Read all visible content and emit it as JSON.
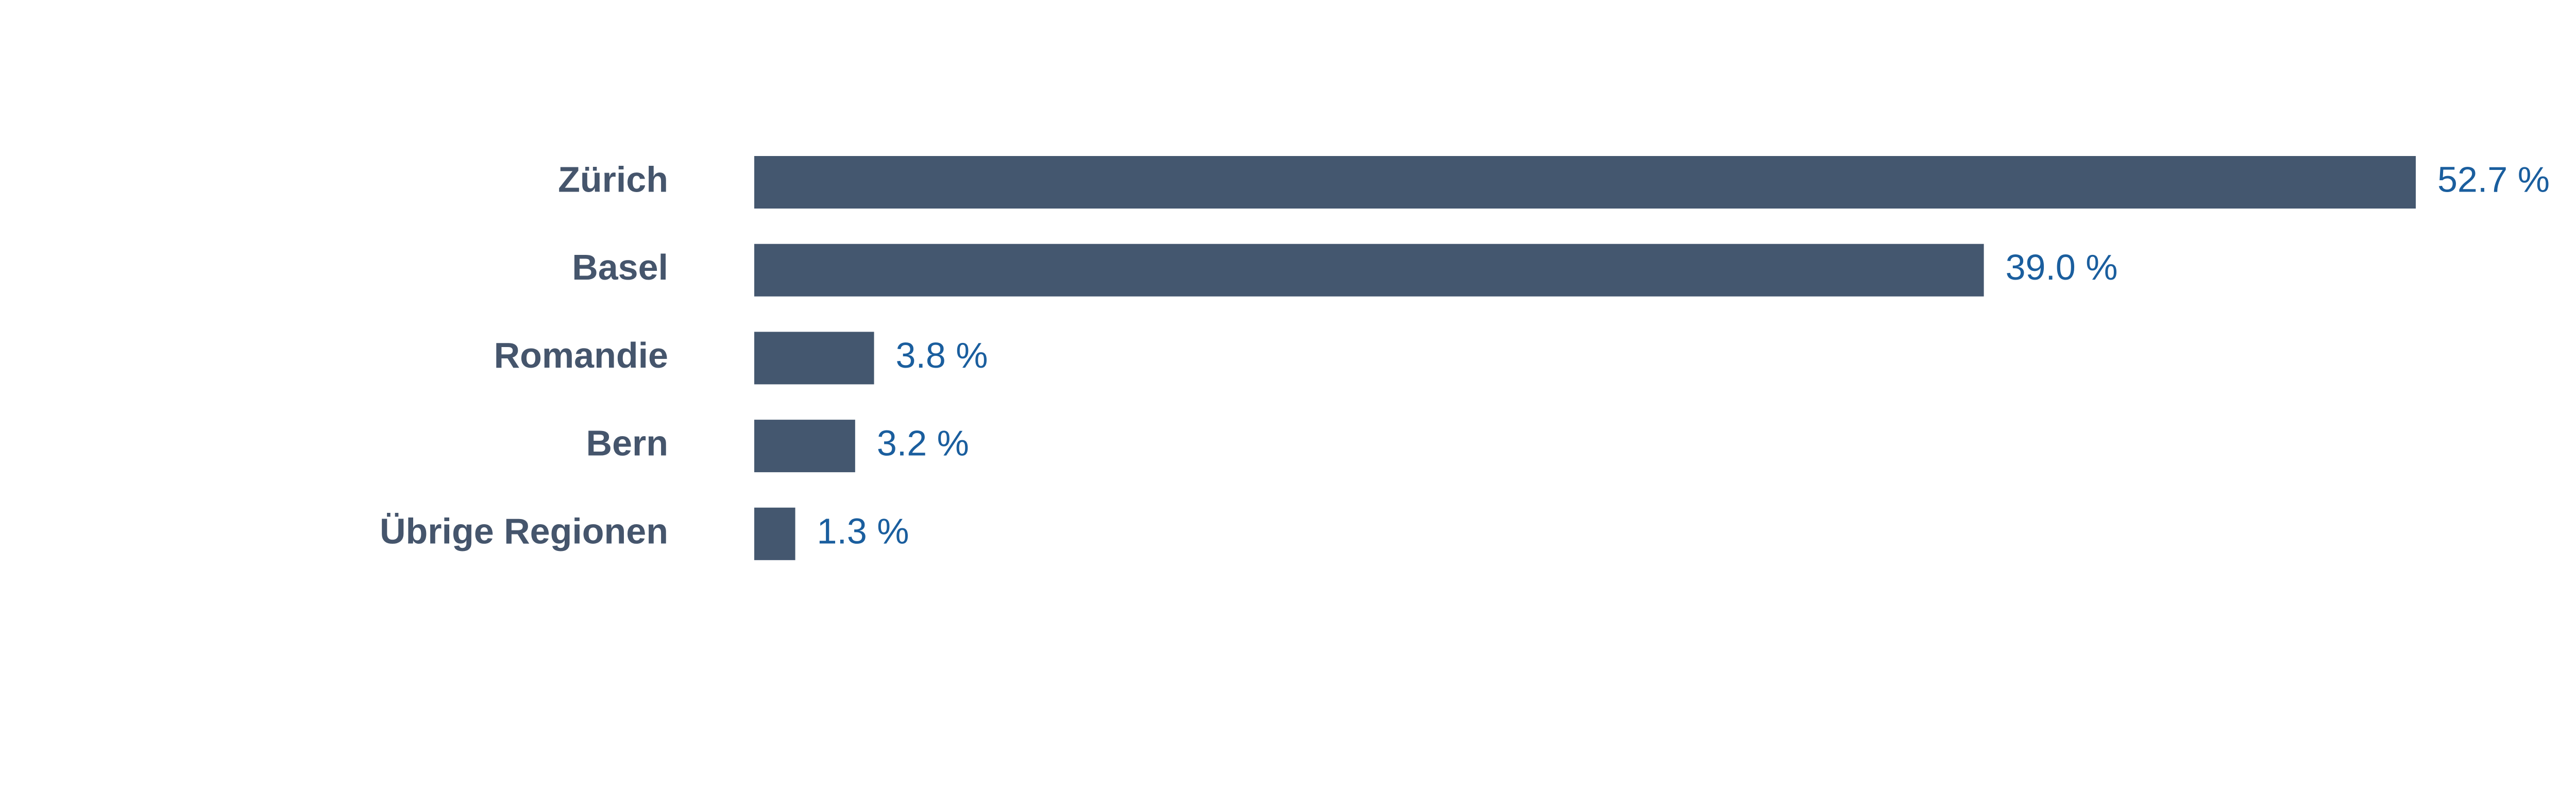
{
  "chart_data": {
    "type": "bar",
    "orientation": "horizontal",
    "categories": [
      "Zürich",
      "Basel",
      "Romandie",
      "Bern",
      "Übrige Regionen"
    ],
    "values": [
      52.7,
      39.0,
      3.8,
      3.2,
      1.3
    ],
    "value_labels": [
      "52.7 %",
      "39.0 %",
      "3.8 %",
      "3.2 %",
      "1.3 %"
    ],
    "color": "#44576f"
  }
}
